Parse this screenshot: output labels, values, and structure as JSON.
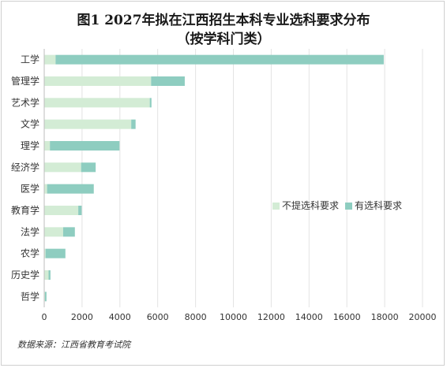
{
  "colors": {
    "not_required": "#d3ecd5",
    "required": "#8ecdc0",
    "grid": "#e3e3e3",
    "axis": "#bdbdbd"
  },
  "chart_data": {
    "type": "bar",
    "orientation": "horizontal",
    "stacked": true,
    "title": "图1 2027年拟在江西招生本科专业选科要求分布",
    "subtitle": "（按学科门类）",
    "categories": [
      "工学",
      "管理学",
      "艺术学",
      "文学",
      "理学",
      "经济学",
      "医学",
      "教育学",
      "法学",
      "农学",
      "历史学",
      "哲学"
    ],
    "series": [
      {
        "name": "不提选科要求",
        "color": "#d3ecd5",
        "values": [
          600,
          5650,
          5580,
          4600,
          300,
          1950,
          150,
          1800,
          1000,
          70,
          230,
          40
        ]
      },
      {
        "name": "有选科要求",
        "color": "#8ecdc0",
        "values": [
          17350,
          1780,
          90,
          230,
          3680,
          770,
          2470,
          180,
          620,
          1050,
          100,
          80
        ]
      }
    ],
    "xlim": [
      0,
      20000
    ],
    "xticks": [
      0,
      2000,
      4000,
      6000,
      8000,
      10000,
      12000,
      14000,
      16000,
      18000,
      20000
    ],
    "grid": "vertical",
    "legend_position": "right"
  },
  "source_text": "数据来源：江西省教育考试院"
}
